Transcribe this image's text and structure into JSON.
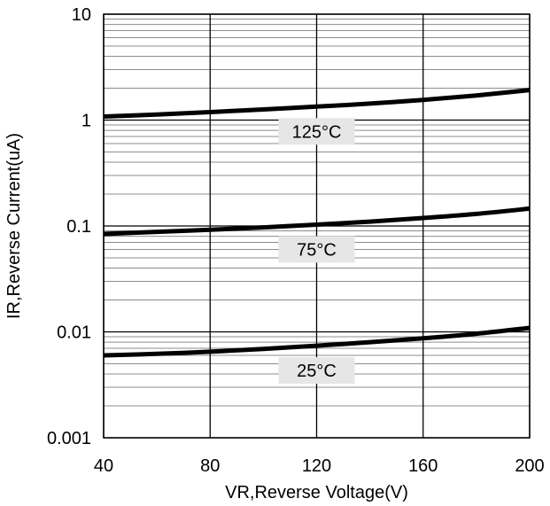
{
  "chart_data": {
    "type": "line",
    "xlabel": "VR,Reverse Voltage(V)",
    "ylabel": "IR,Reverse Current(uA)",
    "x_scale": "linear",
    "y_scale": "log",
    "xlim": [
      40,
      200
    ],
    "ylim": [
      0.001,
      10
    ],
    "x_ticks": [
      40,
      80,
      120,
      160,
      200
    ],
    "x_tick_labels": [
      "40",
      "80",
      "120",
      "160",
      "200"
    ],
    "y_ticks": [
      0.001,
      0.01,
      0.1,
      1,
      10
    ],
    "y_tick_labels": [
      "0.001",
      "0.01",
      "0.1",
      "1",
      "10"
    ],
    "grid": true,
    "legend": "none",
    "line_color": "#000000",
    "series": [
      {
        "label": "125°C",
        "x": [
          40,
          60,
          80,
          100,
          120,
          140,
          160,
          180,
          200
        ],
        "y": [
          1.08,
          1.13,
          1.19,
          1.26,
          1.34,
          1.43,
          1.55,
          1.71,
          1.92
        ]
      },
      {
        "label": "75°C",
        "x": [
          40,
          60,
          80,
          100,
          120,
          140,
          160,
          180,
          200
        ],
        "y": [
          0.084,
          0.088,
          0.092,
          0.097,
          0.103,
          0.11,
          0.119,
          0.13,
          0.146
        ]
      },
      {
        "label": "25°C",
        "x": [
          40,
          60,
          80,
          100,
          120,
          140,
          160,
          180,
          200
        ],
        "y": [
          0.006,
          0.0062,
          0.0065,
          0.0069,
          0.0074,
          0.008,
          0.0087,
          0.0096,
          0.0109
        ]
      }
    ]
  }
}
